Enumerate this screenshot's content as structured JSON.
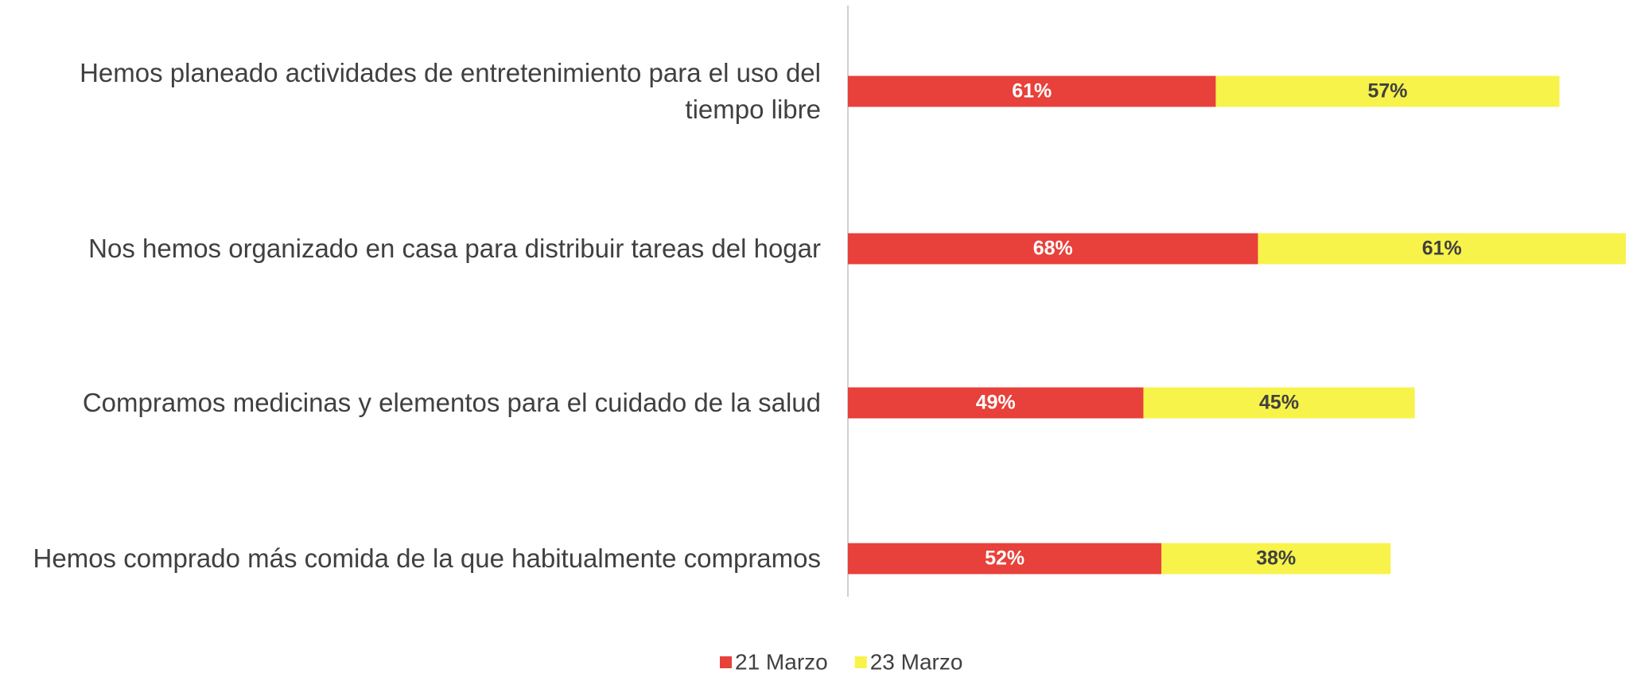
{
  "chart_data": {
    "type": "stacked-barh",
    "categories": [
      "Hemos planeado actividades de entretenimiento para el uso del tiempo libre",
      "Nos hemos organizado en casa para distribuir tareas del hogar",
      "Compramos medicinas y elementos para el cuidado de la salud",
      "Hemos comprado más comida de la que habitualmente compramos"
    ],
    "series": [
      {
        "name": "21 Marzo",
        "color": "#e8403a",
        "values": [
          61,
          68,
          49,
          52
        ],
        "value_labels": [
          "61%",
          "68%",
          "49%",
          "52%"
        ]
      },
      {
        "name": "23 Marzo",
        "color": "#f7f34a",
        "values": [
          57,
          61,
          45,
          38
        ],
        "value_labels": [
          "57%",
          "61%",
          "45%",
          "38%"
        ]
      }
    ],
    "legend": "bottom"
  }
}
